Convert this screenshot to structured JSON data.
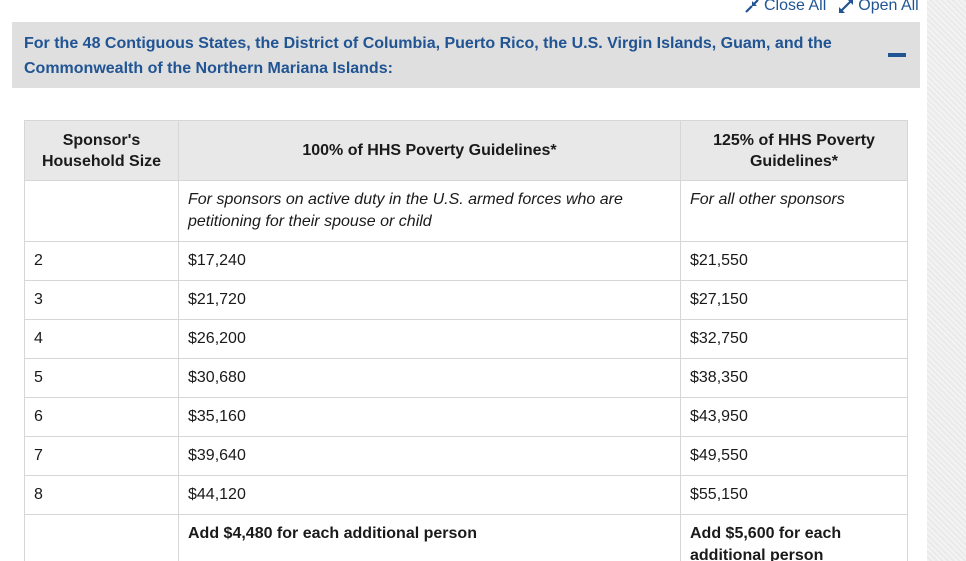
{
  "toolbar": {
    "close_all_label": "Close All",
    "close_all_icon": "compress-arrows-icon",
    "open_all_label": "Open All",
    "open_all_icon": "expand-arrows-icon"
  },
  "accordion": {
    "heading": "For the 48 Contiguous States, the District of Columbia, Puerto Rico, the U.S. Virgin Islands, Guam, and the Commonwealth of the Northern Mariana Islands:",
    "toggle_icon": "minus-icon",
    "background_color": "#dfdfdf",
    "accent_color": "#205493"
  },
  "table": {
    "headers": [
      "Sponsor's Household Size",
      "100% of HHS Poverty Guidelines*",
      "125% of HHS Poverty Guidelines*"
    ],
    "notes": [
      "",
      "For sponsors on active duty in the U.S. armed forces who are petitioning for their spouse or child",
      "For all other sponsors"
    ],
    "rows": [
      [
        "2",
        "$17,240",
        "$21,550"
      ],
      [
        "3",
        "$21,720",
        "$27,150"
      ],
      [
        "4",
        "$26,200",
        "$32,750"
      ],
      [
        "5",
        "$30,680",
        "$38,350"
      ],
      [
        "6",
        "$35,160",
        "$43,950"
      ],
      [
        "7",
        "$39,640",
        "$49,550"
      ],
      [
        "8",
        "$44,120",
        "$55,150"
      ]
    ],
    "additional": [
      "",
      "Add $4,480 for each additional person",
      "Add $5,600 for each additional person"
    ]
  }
}
